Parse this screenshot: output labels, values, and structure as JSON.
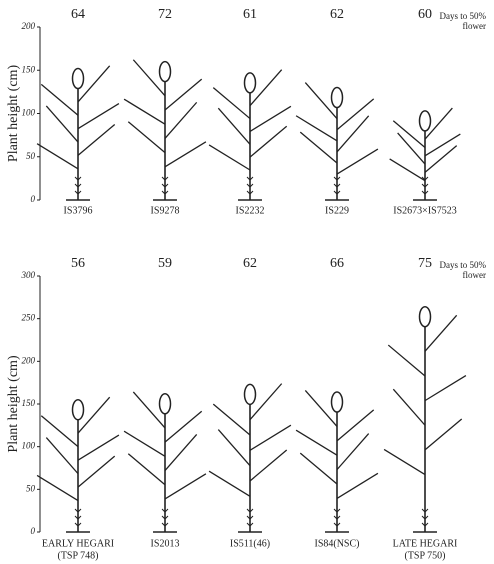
{
  "chart_data": [
    {
      "type": "plant",
      "y_label": "Plant height (cm)",
      "days_label": [
        "Days to 50%",
        "flower"
      ],
      "categories": [
        "IS3796",
        "IS9278",
        "IS2232",
        "IS229",
        "IS2673×IS7523"
      ],
      "category_notes": [
        null,
        null,
        null,
        null,
        null
      ],
      "values": [
        152,
        160,
        147,
        130,
        103
      ],
      "days_to_flower": [
        64,
        72,
        61,
        62,
        60
      ],
      "ylim": [
        0,
        200
      ],
      "yticks": [
        0,
        50,
        100,
        150,
        200
      ],
      "color": "#222"
    },
    {
      "type": "plant",
      "y_label": "Plant height (cm)",
      "days_label": [
        "Days to 50%",
        "flower"
      ],
      "categories": [
        "EARLY HEGARI",
        "IS2013",
        "IS511(46)",
        "IS84(NSC)",
        "LATE HEGARI"
      ],
      "category_notes": [
        "(TSP 748)",
        null,
        null,
        null,
        "(TSP 750)"
      ],
      "values": [
        155,
        162,
        173,
        164,
        264
      ],
      "days_to_flower": [
        56,
        59,
        62,
        66,
        75
      ],
      "ylim": [
        0,
        300
      ],
      "yticks": [
        0,
        50,
        100,
        150,
        200,
        250,
        300
      ],
      "color": "#222"
    }
  ]
}
